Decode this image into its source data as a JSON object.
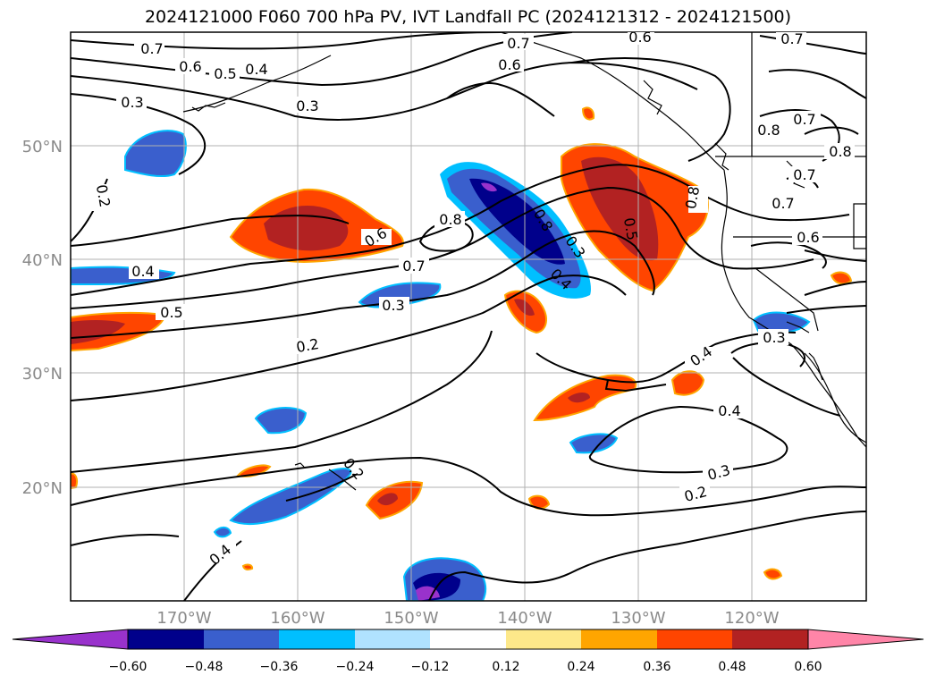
{
  "title": "2024121000 F060 700 hPa PV, IVT Landfall PC (2024121312 - 2024121500)",
  "colors": {
    "frame": "#000000",
    "grid": "#b0b0b0",
    "coast": "#000000",
    "contour": "#000000",
    "axis_label": "#8a8a8a",
    "neg_060": "#9932cc",
    "neg_048": "#00008b",
    "neg_036": "#3a5fcd",
    "neg_024": "#00bfff",
    "neg_012": "#b0e2ff",
    "pos_012": "#fde88a",
    "pos_024": "#ffa500",
    "pos_036": "#ff4500",
    "pos_048": "#b22222",
    "pos_060": "#ff85a8"
  },
  "map": {
    "lon_labels": [
      "170°W",
      "160°W",
      "150°W",
      "140°W",
      "130°W",
      "120°W"
    ],
    "lat_labels": [
      "50°N",
      "40°N",
      "30°N",
      "20°N"
    ]
  },
  "contour_labels": [
    "0.7",
    "0.6",
    "0.5",
    "0.4",
    "0.3",
    "0.3",
    "0.2",
    "0.7",
    "0.6",
    "0.6",
    "0.7",
    "0.8",
    "0.7",
    "0.8",
    "0.8",
    "0.7",
    "0.7",
    "0.6",
    "0.8",
    "0.6",
    "0.8",
    "0.7",
    "0.4",
    "0.5",
    "0.3",
    "0.2",
    "0.5",
    "0.4",
    "0.3",
    "0.2",
    "0.3",
    "0.4",
    "0.4",
    "0.3",
    "0.2",
    "0.4",
    "0.3",
    "0.6"
  ],
  "colorbar": {
    "levels": [
      -0.72,
      -0.6,
      -0.48,
      -0.36,
      -0.24,
      -0.12,
      0.12,
      0.24,
      0.36,
      0.48,
      0.6,
      0.72
    ],
    "ticks": [
      "−0.60",
      "−0.48",
      "−0.36",
      "−0.24",
      "−0.12",
      "0.12",
      "0.24",
      "0.36",
      "0.48",
      "0.60"
    ],
    "segment_colors": [
      "#9932cc",
      "#00008b",
      "#3a5fcd",
      "#00bfff",
      "#b0e2ff",
      "#ffffff",
      "#fde88a",
      "#ffa500",
      "#ff4500",
      "#b22222",
      "#ff85a8"
    ],
    "extend": "both"
  }
}
